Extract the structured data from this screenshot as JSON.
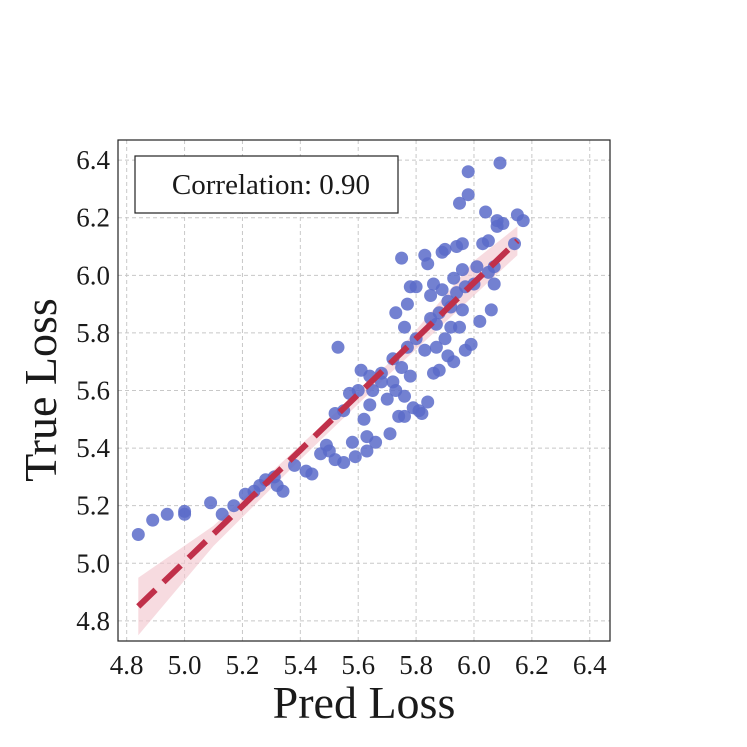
{
  "chart_data": {
    "type": "scatter",
    "title": "",
    "xlabel": "Pred Loss",
    "ylabel": "True Loss",
    "xlim": [
      4.77,
      6.47
    ],
    "ylim": [
      4.73,
      6.47
    ],
    "xticks": [
      "4.8",
      "5.0",
      "5.2",
      "5.4",
      "5.6",
      "5.8",
      "6.0",
      "6.2",
      "6.4"
    ],
    "yticks": [
      "4.8",
      "5.0",
      "5.2",
      "5.4",
      "5.6",
      "5.8",
      "6.0",
      "6.2",
      "6.4"
    ],
    "grid": true,
    "annotation": "Correlation: 0.90",
    "colors": {
      "points": "#5b6bc9",
      "fit_line": "#c0304a",
      "band": "#f3c7cf"
    },
    "fit_line": {
      "x": [
        4.84,
        6.15
      ],
      "y": [
        4.85,
        6.12
      ]
    },
    "confidence_band": {
      "x": [
        4.84,
        5.1,
        5.4,
        5.7,
        6.0,
        6.15
      ],
      "lower": [
        4.75,
        5.06,
        5.36,
        5.65,
        5.93,
        6.07
      ],
      "upper": [
        4.95,
        5.13,
        5.41,
        5.69,
        6.05,
        6.17
      ]
    },
    "points": [
      [
        4.84,
        5.1
      ],
      [
        4.89,
        5.15
      ],
      [
        4.94,
        5.17
      ],
      [
        5.0,
        5.18
      ],
      [
        5.0,
        5.17
      ],
      [
        5.09,
        5.21
      ],
      [
        5.13,
        5.17
      ],
      [
        5.17,
        5.2
      ],
      [
        5.21,
        5.24
      ],
      [
        5.24,
        5.25
      ],
      [
        5.26,
        5.27
      ],
      [
        5.28,
        5.29
      ],
      [
        5.31,
        5.3
      ],
      [
        5.32,
        5.27
      ],
      [
        5.34,
        5.25
      ],
      [
        5.38,
        5.34
      ],
      [
        5.42,
        5.32
      ],
      [
        5.44,
        5.31
      ],
      [
        5.47,
        5.38
      ],
      [
        5.49,
        5.41
      ],
      [
        5.5,
        5.39
      ],
      [
        5.52,
        5.52
      ],
      [
        5.52,
        5.36
      ],
      [
        5.53,
        5.75
      ],
      [
        5.55,
        5.53
      ],
      [
        5.55,
        5.35
      ],
      [
        5.57,
        5.59
      ],
      [
        5.58,
        5.42
      ],
      [
        5.59,
        5.37
      ],
      [
        5.6,
        5.6
      ],
      [
        5.61,
        5.67
      ],
      [
        5.62,
        5.5
      ],
      [
        5.63,
        5.44
      ],
      [
        5.63,
        5.39
      ],
      [
        5.64,
        5.65
      ],
      [
        5.64,
        5.55
      ],
      [
        5.65,
        5.6
      ],
      [
        5.66,
        5.42
      ],
      [
        5.68,
        5.66
      ],
      [
        5.68,
        5.63
      ],
      [
        5.7,
        5.57
      ],
      [
        5.71,
        5.45
      ],
      [
        5.72,
        5.71
      ],
      [
        5.72,
        5.63
      ],
      [
        5.73,
        5.87
      ],
      [
        5.73,
        5.6
      ],
      [
        5.74,
        5.51
      ],
      [
        5.75,
        6.06
      ],
      [
        5.75,
        5.68
      ],
      [
        5.76,
        5.82
      ],
      [
        5.76,
        5.58
      ],
      [
        5.76,
        5.51
      ],
      [
        5.77,
        5.9
      ],
      [
        5.77,
        5.75
      ],
      [
        5.78,
        5.96
      ],
      [
        5.78,
        5.65
      ],
      [
        5.79,
        5.54
      ],
      [
        5.8,
        5.96
      ],
      [
        5.8,
        5.78
      ],
      [
        5.81,
        5.53
      ],
      [
        5.82,
        5.52
      ],
      [
        5.83,
        6.07
      ],
      [
        5.83,
        5.74
      ],
      [
        5.84,
        6.04
      ],
      [
        5.84,
        5.56
      ],
      [
        5.85,
        5.93
      ],
      [
        5.85,
        5.85
      ],
      [
        5.86,
        5.66
      ],
      [
        5.86,
        5.97
      ],
      [
        5.87,
        5.83
      ],
      [
        5.87,
        5.75
      ],
      [
        5.88,
        5.67
      ],
      [
        5.88,
        5.87
      ],
      [
        5.89,
        6.08
      ],
      [
        5.89,
        5.95
      ],
      [
        5.9,
        5.78
      ],
      [
        5.9,
        6.09
      ],
      [
        5.91,
        5.91
      ],
      [
        5.91,
        5.72
      ],
      [
        5.92,
        5.89
      ],
      [
        5.92,
        5.82
      ],
      [
        5.93,
        5.99
      ],
      [
        5.93,
        5.7
      ],
      [
        5.94,
        5.94
      ],
      [
        5.94,
        6.1
      ],
      [
        5.95,
        5.82
      ],
      [
        5.95,
        6.25
      ],
      [
        5.96,
        6.11
      ],
      [
        5.96,
        6.02
      ],
      [
        5.96,
        5.88
      ],
      [
        5.97,
        5.96
      ],
      [
        5.97,
        5.74
      ],
      [
        5.98,
        6.36
      ],
      [
        5.98,
        6.28
      ],
      [
        5.99,
        5.76
      ],
      [
        6.0,
        5.97
      ],
      [
        6.01,
        6.03
      ],
      [
        6.02,
        5.84
      ],
      [
        6.03,
        6.11
      ],
      [
        6.04,
        6.22
      ],
      [
        6.05,
        6.12
      ],
      [
        6.05,
        6.01
      ],
      [
        6.06,
        5.88
      ],
      [
        6.07,
        5.97
      ],
      [
        6.07,
        6.03
      ],
      [
        6.08,
        6.19
      ],
      [
        6.08,
        6.17
      ],
      [
        6.09,
        6.39
      ],
      [
        6.1,
        6.18
      ],
      [
        6.14,
        6.11
      ],
      [
        6.15,
        6.21
      ],
      [
        6.17,
        6.19
      ]
    ]
  }
}
